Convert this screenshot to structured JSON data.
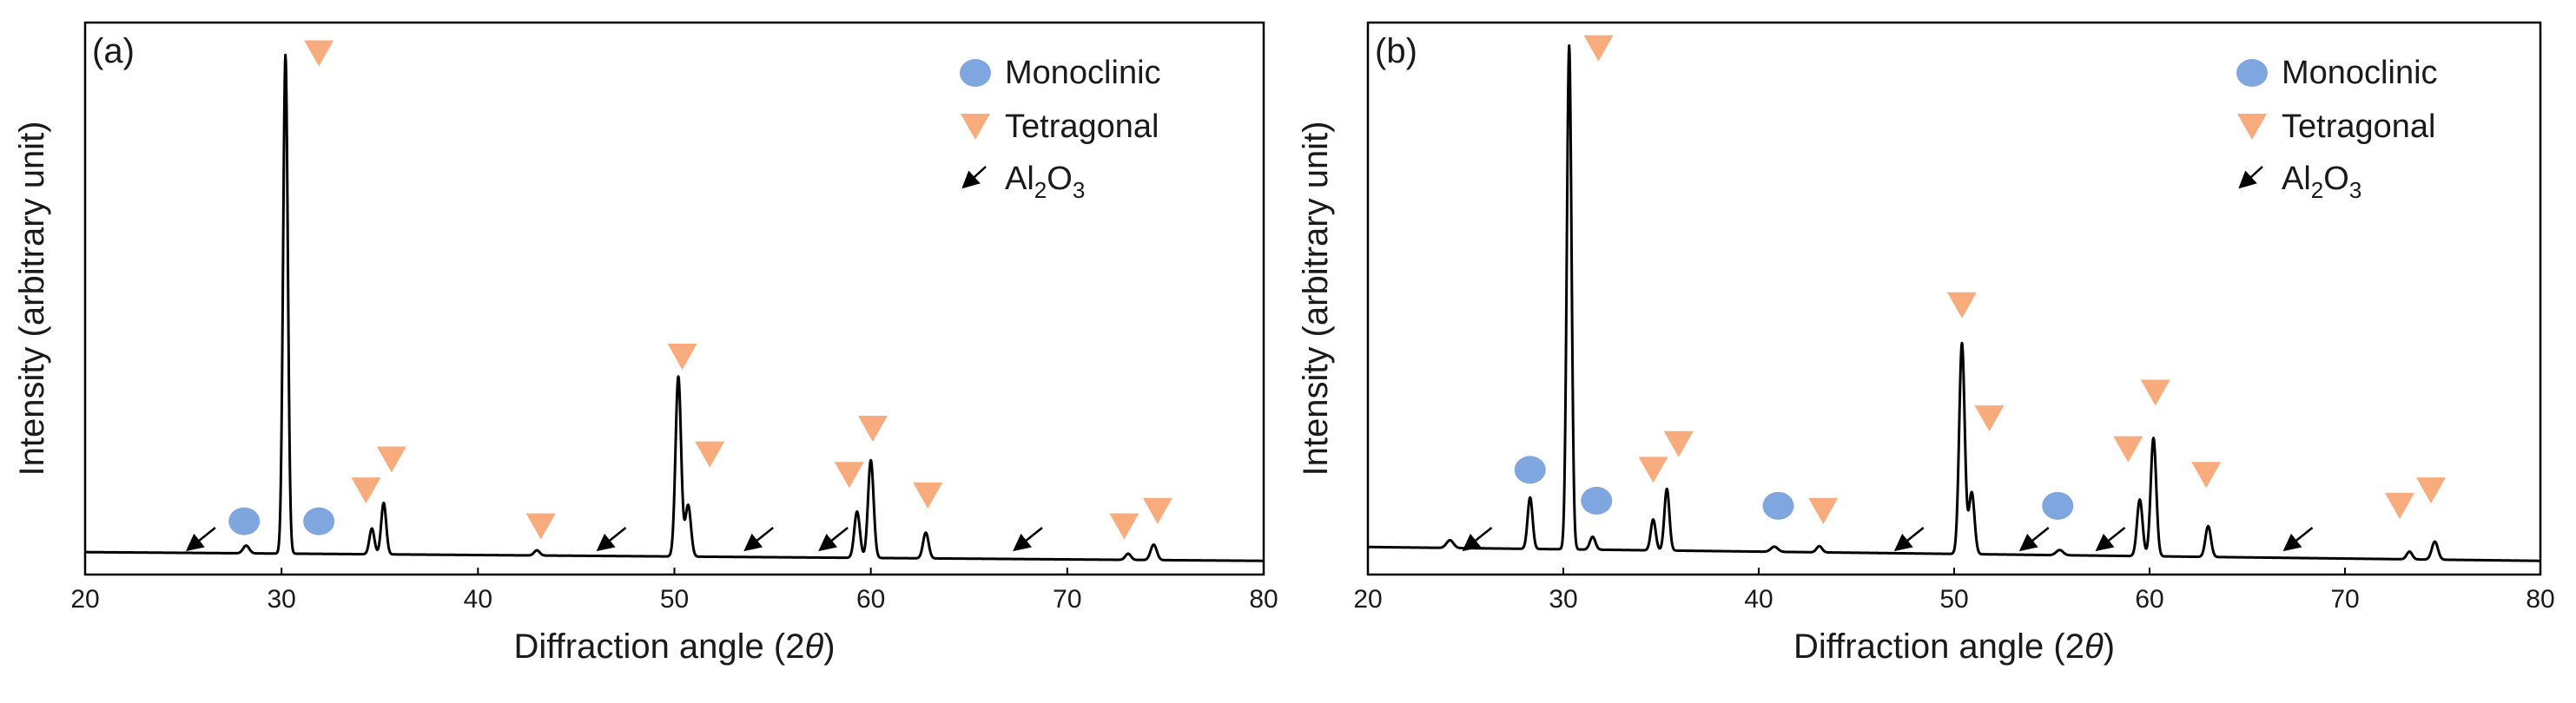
{
  "colors": {
    "monoclinic": "#7fa6de",
    "tetragonal": "#f8ab7c",
    "line": "#000000",
    "frame": "#000000"
  },
  "chart_data": [
    {
      "type": "line",
      "panel": "(a)",
      "xlabel_prefix": "Diffraction angle (2",
      "xlabel_symbol": "θ",
      "xlabel_suffix": ")",
      "ylabel": "Intensity (arbitrary unit)",
      "xlim": [
        20,
        80
      ],
      "ylim": [
        0,
        105
      ],
      "xticks": [
        20,
        30,
        40,
        50,
        60,
        70,
        80
      ],
      "legend": {
        "position": "top-right",
        "monoclinic": "Monoclinic",
        "tetragonal": "Tetragonal",
        "al2o3_main": "Al",
        "al2o3_sub1": "2",
        "al2o3_mid": "O",
        "al2o3_sub2": "3"
      },
      "peaks": [
        {
          "x": 28.2,
          "h": 1.5,
          "w": 0.22
        },
        {
          "x": 30.2,
          "h": 97,
          "w": 0.17
        },
        {
          "x": 34.6,
          "h": 5,
          "w": 0.18
        },
        {
          "x": 35.2,
          "h": 10,
          "w": 0.18
        },
        {
          "x": 43.0,
          "h": 1.0,
          "w": 0.2
        },
        {
          "x": 50.2,
          "h": 35,
          "w": 0.2
        },
        {
          "x": 50.7,
          "h": 10,
          "w": 0.2
        },
        {
          "x": 59.3,
          "h": 9,
          "w": 0.2
        },
        {
          "x": 60.0,
          "h": 19,
          "w": 0.2
        },
        {
          "x": 62.8,
          "h": 5,
          "w": 0.2
        },
        {
          "x": 73.1,
          "h": 1.2,
          "w": 0.2
        },
        {
          "x": 74.4,
          "h": 3,
          "w": 0.22
        }
      ],
      "baseline": {
        "start": 2.0,
        "end": 0.3
      },
      "monoclinic_markers": [
        {
          "x": 28.1,
          "y": 8
        },
        {
          "x": 31.9,
          "y": 8
        }
      ],
      "tetragonal_markers": [
        {
          "x": 31.9,
          "y": 99
        },
        {
          "x": 34.3,
          "y": 14
        },
        {
          "x": 35.6,
          "y": 20
        },
        {
          "x": 43.2,
          "y": 7
        },
        {
          "x": 50.4,
          "y": 40
        },
        {
          "x": 51.8,
          "y": 21
        },
        {
          "x": 58.9,
          "y": 17
        },
        {
          "x": 60.1,
          "y": 26
        },
        {
          "x": 62.9,
          "y": 13
        },
        {
          "x": 72.9,
          "y": 7
        },
        {
          "x": 74.6,
          "y": 10
        }
      ],
      "al2o3_markers": [
        {
          "x": 25.3
        },
        {
          "x": 46.2
        },
        {
          "x": 53.7
        },
        {
          "x": 57.5
        },
        {
          "x": 67.4
        }
      ]
    },
    {
      "type": "line",
      "panel": "(b)",
      "xlabel_prefix": "Diffraction angle (2",
      "xlabel_symbol": "θ",
      "xlabel_suffix": ")",
      "ylabel": "Intensity (arbitrary unit)",
      "xlim": [
        20,
        80
      ],
      "ylim": [
        0,
        105
      ],
      "xticks": [
        20,
        30,
        40,
        50,
        60,
        70,
        80
      ],
      "legend": {
        "position": "top-right",
        "monoclinic": "Monoclinic",
        "tetragonal": "Tetragonal",
        "al2o3_main": "Al",
        "al2o3_sub1": "2",
        "al2o3_mid": "O",
        "al2o3_sub2": "3"
      },
      "peaks": [
        {
          "x": 24.2,
          "h": 1.5,
          "w": 0.25
        },
        {
          "x": 28.3,
          "h": 10,
          "w": 0.18
        },
        {
          "x": 30.3,
          "h": 98,
          "w": 0.17
        },
        {
          "x": 31.5,
          "h": 2.5,
          "w": 0.2
        },
        {
          "x": 34.6,
          "h": 6,
          "w": 0.18
        },
        {
          "x": 35.3,
          "h": 12,
          "w": 0.18
        },
        {
          "x": 40.8,
          "h": 1.0,
          "w": 0.25
        },
        {
          "x": 43.1,
          "h": 1.2,
          "w": 0.2
        },
        {
          "x": 50.4,
          "h": 41,
          "w": 0.2
        },
        {
          "x": 50.9,
          "h": 12,
          "w": 0.2
        },
        {
          "x": 55.4,
          "h": 1.0,
          "w": 0.25
        },
        {
          "x": 59.5,
          "h": 11,
          "w": 0.2
        },
        {
          "x": 60.2,
          "h": 23,
          "w": 0.2
        },
        {
          "x": 63.0,
          "h": 6,
          "w": 0.2
        },
        {
          "x": 73.3,
          "h": 1.5,
          "w": 0.2
        },
        {
          "x": 74.6,
          "h": 3.5,
          "w": 0.22
        }
      ],
      "baseline": {
        "start": 3.0,
        "end": 0.3
      },
      "monoclinic_markers": [
        {
          "x": 28.3,
          "y": 18
        },
        {
          "x": 31.7,
          "y": 12
        },
        {
          "x": 41.0,
          "y": 11
        },
        {
          "x": 55.3,
          "y": 11
        }
      ],
      "tetragonal_markers": [
        {
          "x": 31.8,
          "y": 100
        },
        {
          "x": 34.6,
          "y": 18
        },
        {
          "x": 35.9,
          "y": 23
        },
        {
          "x": 43.3,
          "y": 10
        },
        {
          "x": 50.4,
          "y": 50
        },
        {
          "x": 51.8,
          "y": 28
        },
        {
          "x": 58.9,
          "y": 22
        },
        {
          "x": 60.3,
          "y": 33
        },
        {
          "x": 62.9,
          "y": 17
        },
        {
          "x": 72.8,
          "y": 11
        },
        {
          "x": 74.4,
          "y": 14
        }
      ],
      "al2o3_markers": [
        {
          "x": 25.0
        },
        {
          "x": 47.1
        },
        {
          "x": 53.5
        },
        {
          "x": 57.4
        },
        {
          "x": 67.0
        }
      ]
    }
  ]
}
